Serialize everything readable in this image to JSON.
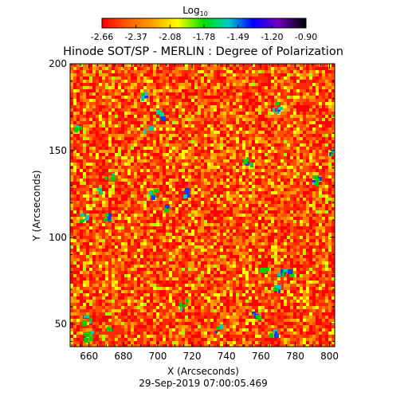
{
  "chart_data": {
    "type": "heatmap",
    "title": "Hinode SOT/SP - MERLIN : Degree of Polarization",
    "xlabel": "X (Arcseconds)",
    "ylabel": "Y (Arcseconds)",
    "xlim": [
      649,
      803
    ],
    "ylim": [
      37,
      200
    ],
    "x_ticks": [
      "660",
      "680",
      "700",
      "720",
      "740",
      "760",
      "780",
      "800"
    ],
    "y_ticks": [
      "50",
      "100",
      "150",
      "200"
    ],
    "colorbar": {
      "label_base": "Log",
      "label_sub": "10",
      "range": [
        -2.66,
        -0.9
      ],
      "ticks": [
        "-2.66",
        "-2.37",
        "-2.08",
        "-1.78",
        "-1.49",
        "-1.20",
        "-0.90"
      ]
    },
    "timestamp": "29-Sep-2019 07:00:05.469"
  }
}
